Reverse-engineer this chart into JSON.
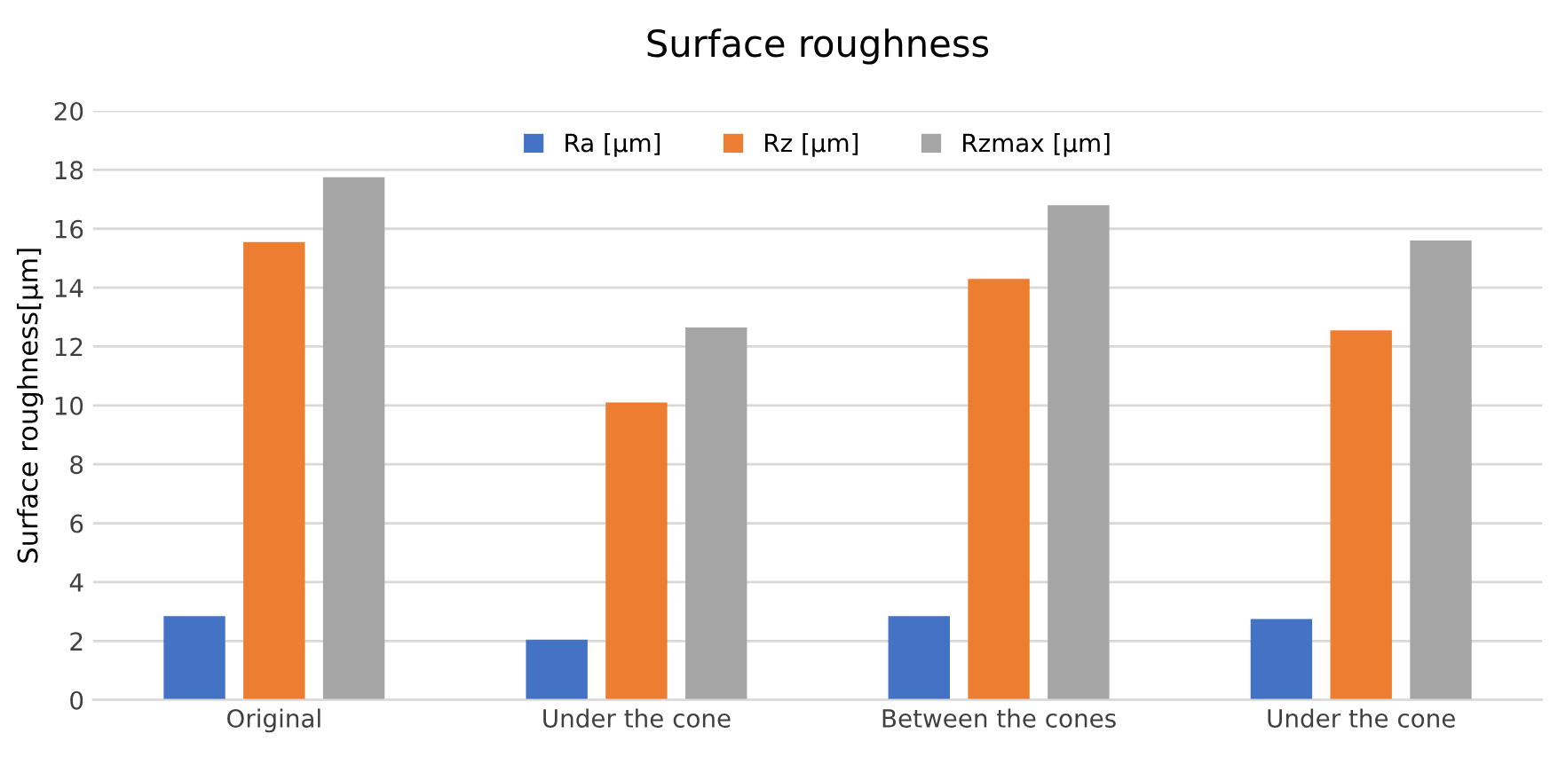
{
  "chart_data": {
    "type": "bar",
    "title": "Surface roughness",
    "ylabel": "Surface roughness[µm]",
    "categories": [
      "Original",
      "Under the cone",
      "Between the cones",
      "Under the cone"
    ],
    "series": [
      {
        "name": "Ra [µm]",
        "color": "#4472c4",
        "values": [
          2.85,
          2.05,
          2.85,
          2.75
        ]
      },
      {
        "name": "Rz [µm]",
        "color": "#ed7d31",
        "values": [
          15.55,
          10.1,
          14.3,
          12.55
        ]
      },
      {
        "name": "Rzmax [µm]",
        "color": "#a5a5a5",
        "values": [
          17.75,
          12.65,
          16.8,
          15.6
        ]
      }
    ],
    "ylim": [
      0,
      20
    ],
    "yticks": [
      0,
      2,
      4,
      6,
      8,
      10,
      12,
      14,
      16,
      18,
      20
    ],
    "grid": "y",
    "legend": "top"
  }
}
